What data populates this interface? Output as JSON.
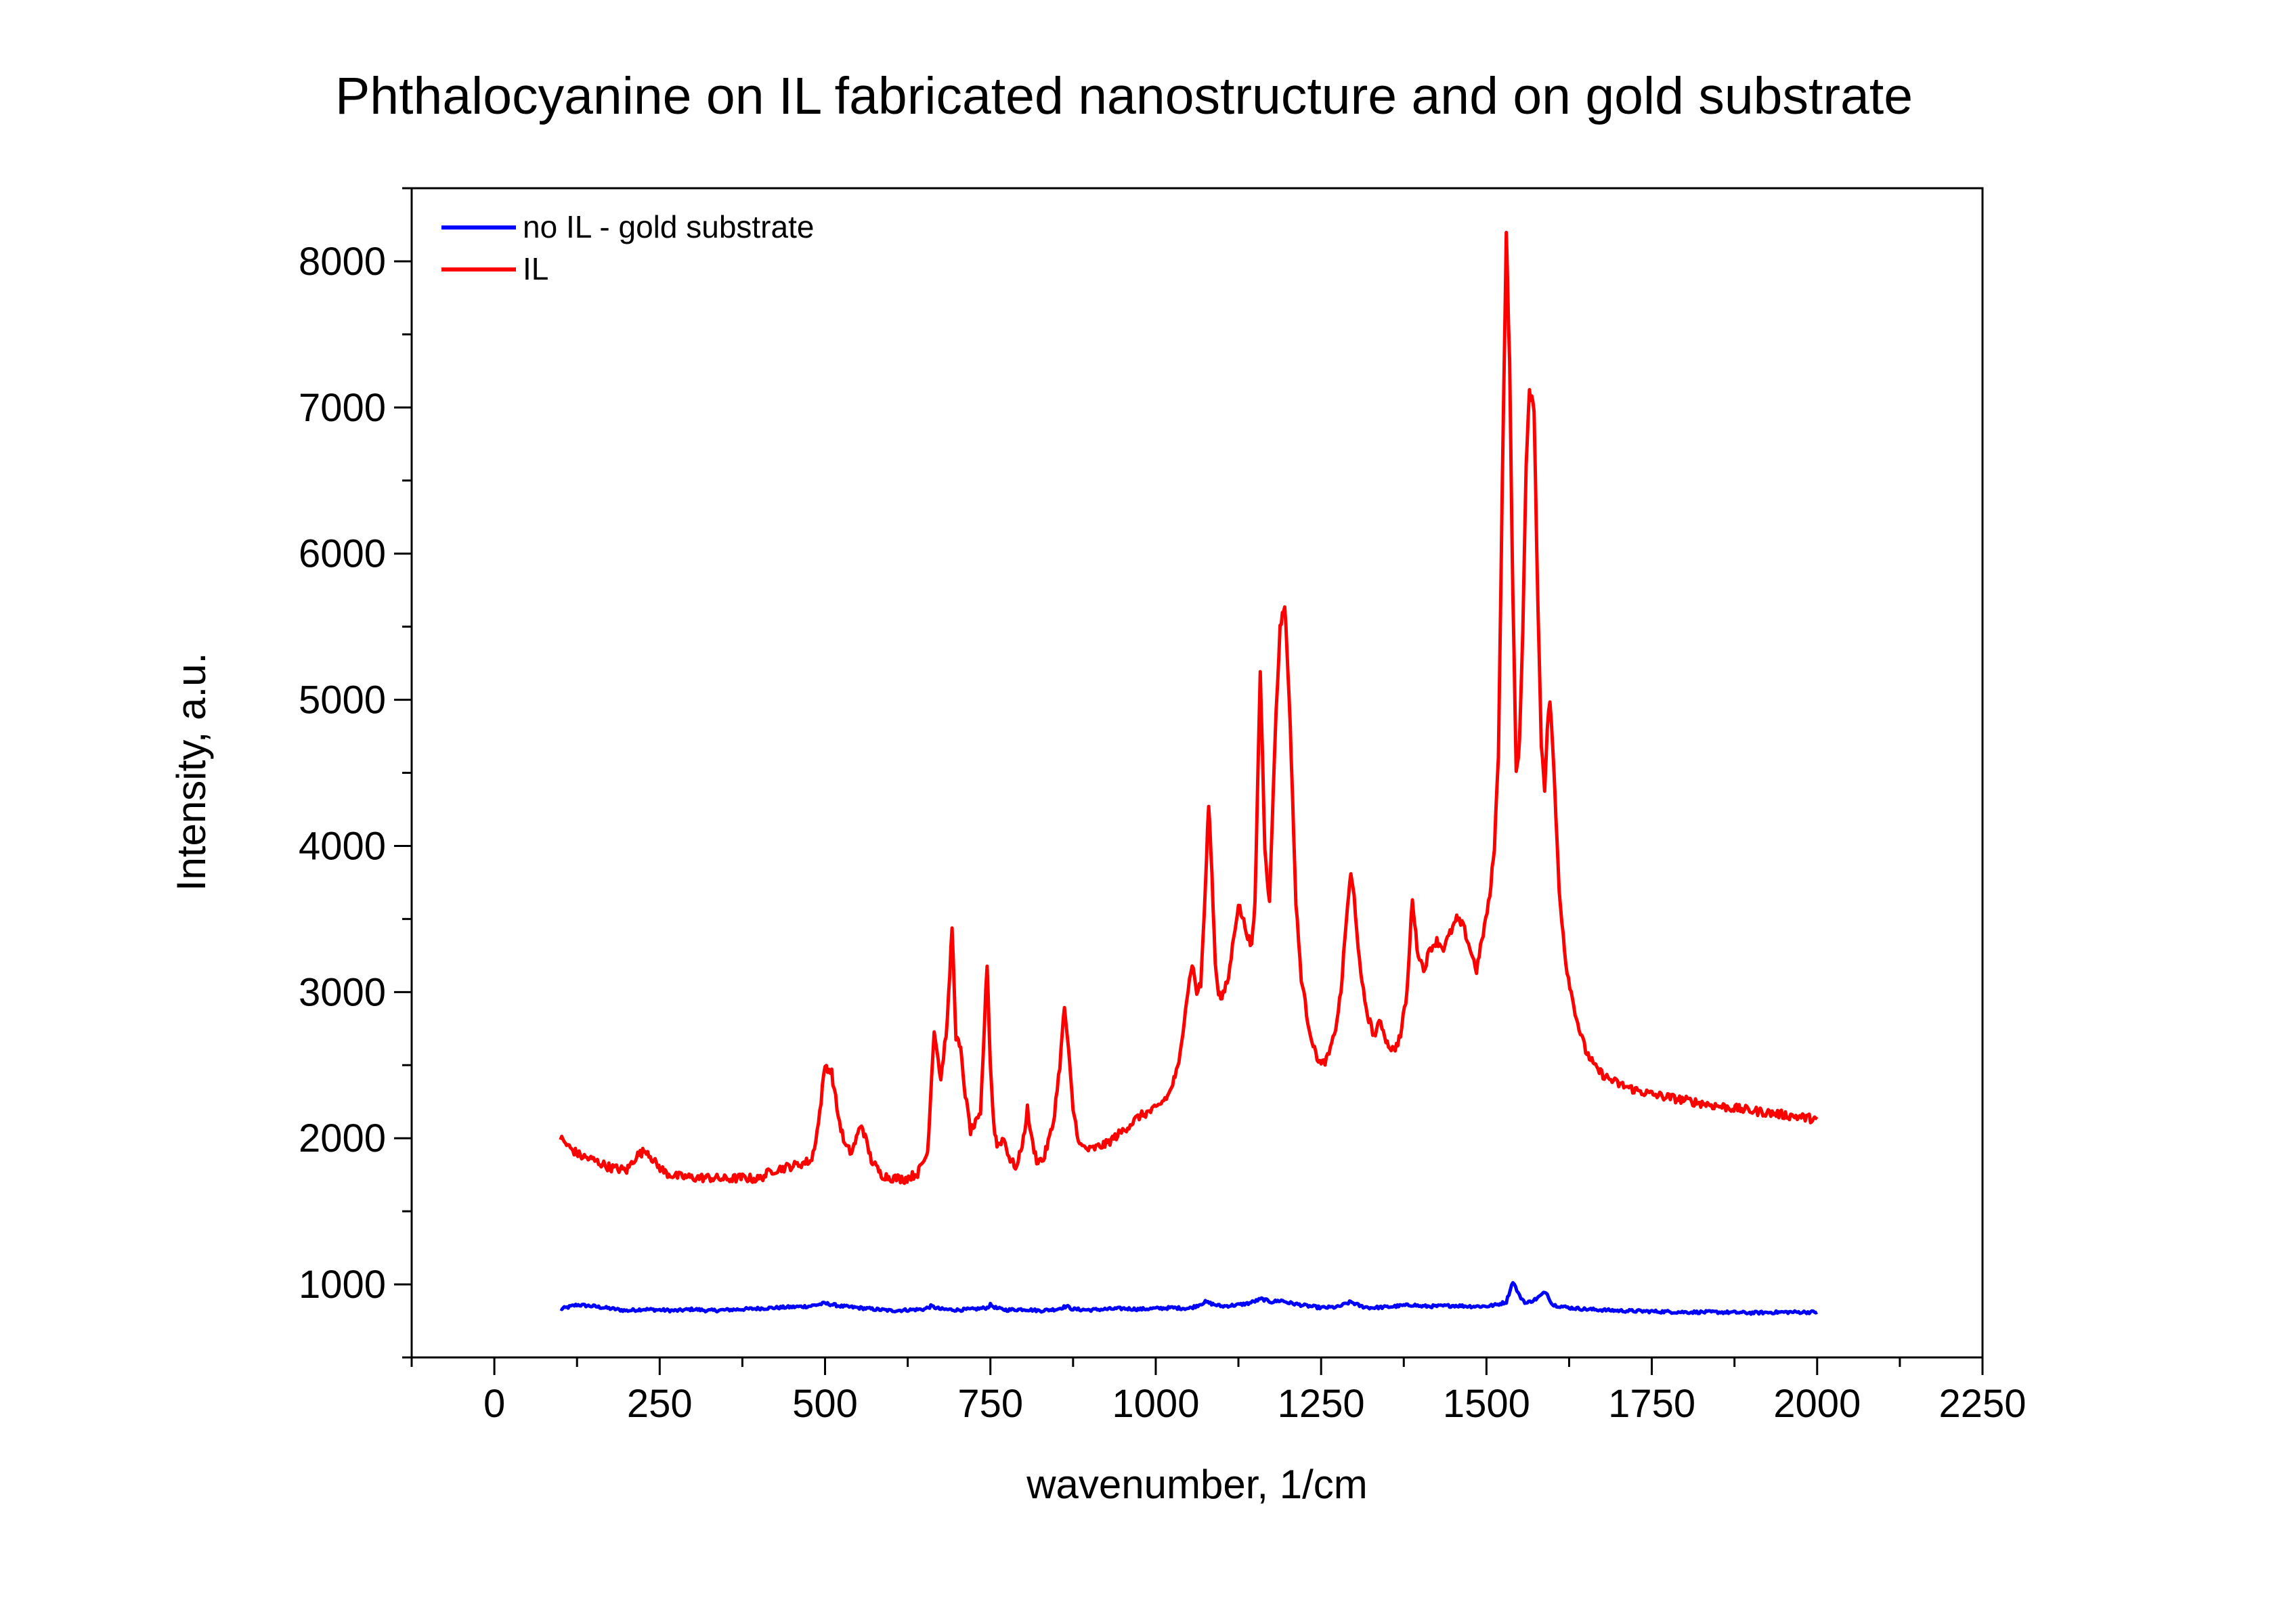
{
  "chart_data": {
    "type": "line",
    "title": "Phthalocyanine on IL fabricated nanostructure and on gold substrate",
    "xlabel": "wavenumber, 1/cm",
    "ylabel": "Intensity, a.u.",
    "xlim": [
      -125,
      2250
    ],
    "ylim": [
      500,
      8500
    ],
    "xticks": [
      0,
      250,
      500,
      750,
      1000,
      1250,
      1500,
      1750,
      2000,
      2250
    ],
    "yticks": [
      1000,
      2000,
      3000,
      4000,
      5000,
      6000,
      7000,
      8000
    ],
    "grid": false,
    "legend_position": "top-left",
    "series": [
      {
        "name": "no IL - gold substrate",
        "color": "#0000ff",
        "x": [
          100,
          125,
          150,
          175,
          200,
          225,
          250,
          275,
          300,
          325,
          350,
          375,
          400,
          425,
          450,
          475,
          500,
          525,
          550,
          575,
          600,
          625,
          650,
          660,
          675,
          700,
          725,
          745,
          750,
          760,
          775,
          800,
          825,
          850,
          865,
          875,
          900,
          925,
          950,
          975,
          1000,
          1025,
          1050,
          1060,
          1075,
          1090,
          1100,
          1125,
          1140,
          1160,
          1175,
          1190,
          1200,
          1225,
          1250,
          1275,
          1295,
          1310,
          1325,
          1350,
          1375,
          1390,
          1400,
          1425,
          1450,
          1475,
          1500,
          1515,
          1530,
          1540,
          1550,
          1560,
          1575,
          1590,
          1600,
          1625,
          1650,
          1675,
          1700,
          1750,
          1800,
          1850,
          1900,
          1950,
          2000
        ],
        "y": [
          830,
          860,
          850,
          835,
          820,
          830,
          825,
          820,
          830,
          820,
          825,
          830,
          835,
          840,
          845,
          850,
          870,
          850,
          840,
          830,
          820,
          825,
          830,
          850,
          830,
          825,
          830,
          840,
          860,
          835,
          825,
          830,
          820,
          830,
          850,
          830,
          825,
          830,
          835,
          830,
          835,
          840,
          835,
          850,
          880,
          860,
          850,
          860,
          870,
          900,
          880,
          890,
          875,
          855,
          840,
          845,
          880,
          850,
          840,
          845,
          855,
          860,
          850,
          850,
          855,
          850,
          850,
          860,
          880,
          1020,
          920,
          870,
          900,
          950,
          860,
          840,
          830,
          825,
          820,
          815,
          810,
          810,
          805,
          810,
          810
        ]
      },
      {
        "name": "IL",
        "color": "#ff0000",
        "x": [
          100,
          115,
          130,
          150,
          175,
          200,
          215,
          230,
          245,
          260,
          275,
          300,
          325,
          350,
          375,
          400,
          420,
          440,
          460,
          480,
          490,
          500,
          510,
          520,
          530,
          540,
          555,
          570,
          585,
          600,
          620,
          640,
          655,
          665,
          675,
          685,
          692,
          698,
          705,
          712,
          720,
          735,
          745,
          750,
          755,
          760,
          770,
          780,
          790,
          800,
          806,
          812,
          820,
          830,
          845,
          855,
          862,
          868,
          875,
          885,
          900,
          925,
          950,
          975,
          1000,
          1020,
          1035,
          1045,
          1055,
          1062,
          1068,
          1075,
          1080,
          1085,
          1090,
          1095,
          1100,
          1110,
          1120,
          1125,
          1135,
          1145,
          1150,
          1158,
          1165,
          1172,
          1180,
          1188,
          1195,
          1200,
          1205,
          1212,
          1220,
          1230,
          1240,
          1250,
          1260,
          1270,
          1280,
          1290,
          1295,
          1300,
          1310,
          1320,
          1330,
          1340,
          1350,
          1360,
          1370,
          1380,
          1388,
          1395,
          1405,
          1415,
          1425,
          1435,
          1445,
          1455,
          1465,
          1475,
          1485,
          1495,
          1505,
          1512,
          1518,
          1524,
          1530,
          1535,
          1540,
          1545,
          1550,
          1555,
          1560,
          1565,
          1572,
          1578,
          1583,
          1588,
          1592,
          1596,
          1600,
          1605,
          1610,
          1620,
          1630,
          1640,
          1650,
          1665,
          1680,
          1700,
          1725,
          1750,
          1800,
          1850,
          1900,
          1950,
          2000
        ],
        "y": [
          2000,
          1930,
          1880,
          1850,
          1800,
          1780,
          1880,
          1920,
          1820,
          1760,
          1740,
          1730,
          1730,
          1720,
          1730,
          1720,
          1780,
          1800,
          1820,
          1850,
          2100,
          2500,
          2450,
          2150,
          1950,
          1900,
          2100,
          1850,
          1750,
          1730,
          1720,
          1760,
          1900,
          2750,
          2400,
          2800,
          3450,
          2700,
          2600,
          2300,
          2050,
          2150,
          3200,
          2500,
          2100,
          1950,
          2000,
          1850,
          1800,
          2000,
          2200,
          2000,
          1850,
          1850,
          2100,
          2500,
          2900,
          2600,
          2200,
          1950,
          1920,
          1960,
          2050,
          2150,
          2200,
          2300,
          2500,
          2900,
          3200,
          3000,
          3050,
          3700,
          4300,
          3800,
          3200,
          3000,
          2950,
          3100,
          3450,
          3600,
          3450,
          3300,
          3600,
          5200,
          4000,
          3600,
          4700,
          5500,
          5650,
          5200,
          4600,
          3600,
          3100,
          2800,
          2600,
          2500,
          2550,
          2700,
          3000,
          3600,
          3800,
          3650,
          3100,
          2850,
          2700,
          2800,
          2650,
          2600,
          2700,
          3000,
          3650,
          3300,
          3150,
          3300,
          3350,
          3300,
          3400,
          3500,
          3450,
          3300,
          3150,
          3400,
          3650,
          4000,
          4600,
          6500,
          8200,
          7300,
          5700,
          4500,
          4700,
          5500,
          6600,
          7100,
          7000,
          5600,
          4700,
          4400,
          4800,
          5000,
          4700,
          4200,
          3700,
          3200,
          2950,
          2750,
          2600,
          2480,
          2420,
          2370,
          2330,
          2300,
          2260,
          2220,
          2190,
          2160,
          2130
        ]
      }
    ]
  }
}
